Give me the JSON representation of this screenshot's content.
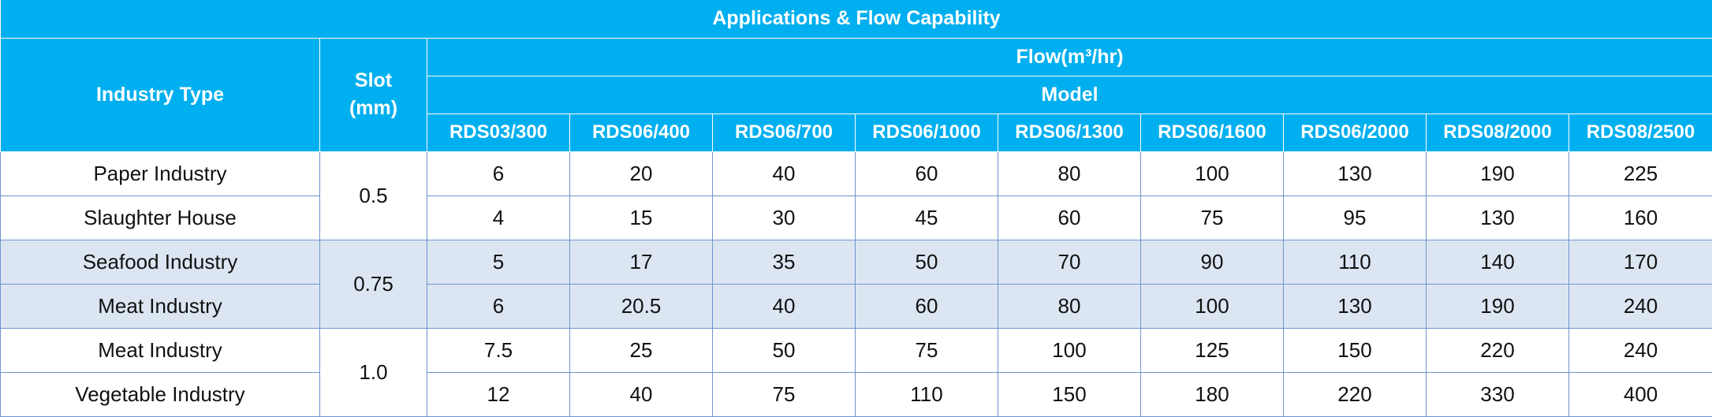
{
  "table": {
    "title": "Applications & Flow Capability",
    "headers": {
      "industry_type": "Industry Type",
      "slot_line1": "Slot",
      "slot_line2": "(mm)",
      "flow": "Flow(m³/hr)",
      "model": "Model",
      "models": [
        "RDS03/300",
        "RDS06/400",
        "RDS06/700",
        "RDS06/1000",
        "RDS06/1300",
        "RDS06/1600",
        "RDS06/2000",
        "RDS08/2000",
        "RDS08/2500"
      ]
    },
    "groups": [
      {
        "slot": "0.5",
        "rows": [
          {
            "industry": "Paper Industry",
            "values": [
              "6",
              "20",
              "40",
              "60",
              "80",
              "100",
              "130",
              "190",
              "225"
            ]
          },
          {
            "industry": "Slaughter House",
            "values": [
              "4",
              "15",
              "30",
              "45",
              "60",
              "75",
              "95",
              "130",
              "160"
            ]
          }
        ]
      },
      {
        "slot": "0.75",
        "rows": [
          {
            "industry": "Seafood Industry",
            "values": [
              "5",
              "17",
              "35",
              "50",
              "70",
              "90",
              "110",
              "140",
              "170"
            ]
          },
          {
            "industry": "Meat Industry",
            "values": [
              "6",
              "20.5",
              "40",
              "60",
              "80",
              "100",
              "130",
              "190",
              "240"
            ]
          }
        ]
      },
      {
        "slot": "1.0",
        "rows": [
          {
            "industry": "Meat Industry",
            "values": [
              "7.5",
              "25",
              "50",
              "75",
              "100",
              "125",
              "150",
              "220",
              "240"
            ]
          },
          {
            "industry": "Vegetable Industry",
            "values": [
              "12",
              "40",
              "75",
              "110",
              "150",
              "180",
              "220",
              "330",
              "400"
            ]
          }
        ]
      }
    ],
    "colors": {
      "header_bg": "#00afef",
      "header_text": "#ffffff",
      "band_light": "#ffffff",
      "band_blue": "#dce6f2",
      "grid": "#6f94cf"
    }
  }
}
